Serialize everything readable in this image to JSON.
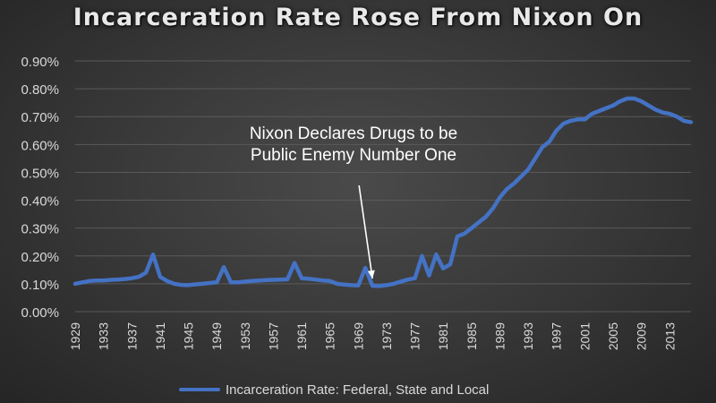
{
  "title": "Incarceration Rate Rose From Nixon On",
  "annotation": {
    "line1": "Nixon Declares Drugs to be",
    "line2": "Public Enemy Number One",
    "arrow_target_year": 1971
  },
  "colors": {
    "series": "#4472c4",
    "axis_text": "#d9d9d9",
    "grid": "#5a5a5a",
    "annotation": "#ffffff"
  },
  "chart_data": {
    "type": "line",
    "title": "Incarceration Rate Rose From Nixon On",
    "xlabel": "",
    "ylabel": "",
    "xlim": [
      1929,
      2016
    ],
    "ylim": [
      0.0,
      0.9
    ],
    "grid": true,
    "legend": "bottom",
    "y_ticks": [
      "0.00%",
      "0.10%",
      "0.20%",
      "0.30%",
      "0.40%",
      "0.50%",
      "0.60%",
      "0.70%",
      "0.80%",
      "0.90%"
    ],
    "y_tick_values": [
      0.0,
      0.1,
      0.2,
      0.3,
      0.4,
      0.5,
      0.6,
      0.7,
      0.8,
      0.9
    ],
    "x_ticks": [
      "1929",
      "1933",
      "1937",
      "1941",
      "1945",
      "1949",
      "1953",
      "1957",
      "1961",
      "1965",
      "1969",
      "1973",
      "1977",
      "1981",
      "1985",
      "1989",
      "1993",
      "1997",
      "2001",
      "2005",
      "2009",
      "2013"
    ],
    "x_tick_values": [
      1929,
      1933,
      1937,
      1941,
      1945,
      1949,
      1953,
      1957,
      1961,
      1965,
      1969,
      1973,
      1977,
      1981,
      1985,
      1989,
      1993,
      1997,
      2001,
      2005,
      2009,
      2013
    ],
    "series": [
      {
        "name": "Incarceration Rate: Federal, State and Local",
        "x": [
          1929,
          1930,
          1931,
          1932,
          1933,
          1934,
          1935,
          1936,
          1937,
          1938,
          1939,
          1940,
          1941,
          1942,
          1943,
          1944,
          1945,
          1946,
          1947,
          1948,
          1949,
          1950,
          1951,
          1952,
          1953,
          1954,
          1955,
          1956,
          1957,
          1958,
          1959,
          1960,
          1961,
          1962,
          1963,
          1964,
          1965,
          1966,
          1967,
          1968,
          1969,
          1970,
          1971,
          1972,
          1973,
          1974,
          1975,
          1976,
          1977,
          1978,
          1979,
          1980,
          1981,
          1982,
          1983,
          1984,
          1985,
          1986,
          1987,
          1988,
          1989,
          1990,
          1991,
          1992,
          1993,
          1994,
          1995,
          1996,
          1997,
          1998,
          1999,
          2000,
          2001,
          2002,
          2003,
          2004,
          2005,
          2006,
          2007,
          2008,
          2009,
          2010,
          2011,
          2012,
          2013,
          2014,
          2015,
          2016
        ],
        "values": [
          0.1,
          0.105,
          0.11,
          0.112,
          0.112,
          0.114,
          0.115,
          0.117,
          0.12,
          0.125,
          0.14,
          0.205,
          0.125,
          0.11,
          0.1,
          0.096,
          0.095,
          0.098,
          0.1,
          0.103,
          0.105,
          0.16,
          0.105,
          0.105,
          0.108,
          0.11,
          0.112,
          0.113,
          0.114,
          0.115,
          0.116,
          0.175,
          0.12,
          0.118,
          0.115,
          0.112,
          0.11,
          0.1,
          0.097,
          0.095,
          0.094,
          0.157,
          0.093,
          0.092,
          0.095,
          0.1,
          0.108,
          0.115,
          0.12,
          0.2,
          0.13,
          0.205,
          0.155,
          0.17,
          0.27,
          0.28,
          0.3,
          0.32,
          0.34,
          0.37,
          0.41,
          0.44,
          0.46,
          0.485,
          0.51,
          0.55,
          0.59,
          0.61,
          0.65,
          0.675,
          0.685,
          0.69,
          0.69,
          0.71,
          0.72,
          0.73,
          0.74,
          0.755,
          0.765,
          0.765,
          0.755,
          0.74,
          0.725,
          0.715,
          0.71,
          0.7,
          0.685,
          0.68
        ]
      }
    ]
  }
}
